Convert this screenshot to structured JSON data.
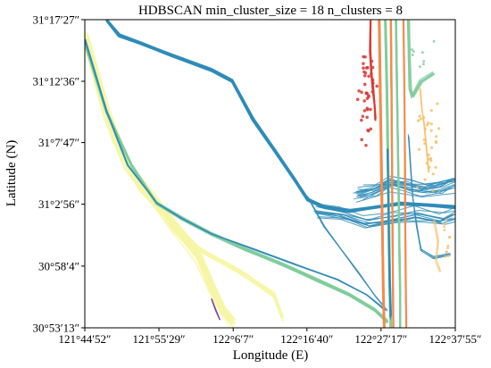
{
  "chart_data": {
    "type": "line",
    "title": "HDBSCAN min_cluster_size = 18 n_clusters = 8",
    "xlabel": "Longitude (E)",
    "ylabel": "Latitude (N)",
    "xlim": [
      121.7478,
      122.6319
    ],
    "ylim": [
      30.8869,
      31.2908
    ],
    "x_ticks": [
      {
        "value": 121.7478,
        "label": "121°44′52″"
      },
      {
        "value": 121.9247,
        "label": "121°55′29″"
      },
      {
        "value": 122.1019,
        "label": "122°6′7″"
      },
      {
        "value": 122.2778,
        "label": "122°16′40″"
      },
      {
        "value": 122.4547,
        "label": "122°27′17″"
      },
      {
        "value": 122.6319,
        "label": "122°37′55″"
      }
    ],
    "y_ticks": [
      {
        "value": 30.8869,
        "label": "30°53′13″"
      },
      {
        "value": 30.9678,
        "label": "30°58′4″"
      },
      {
        "value": 31.0489,
        "label": "31°2′56″"
      },
      {
        "value": 31.1297,
        "label": "31°7′47″"
      },
      {
        "value": 31.21,
        "label": "31°12′36″"
      },
      {
        "value": 31.2908,
        "label": "31°17′27″"
      }
    ],
    "grid": false,
    "legend": "none",
    "colors": {
      "blue": "#2f8cb8",
      "green": "#7fcc9c",
      "yellow": "#f6f6a6",
      "orange": "#f58a4b",
      "red": "#d73a32",
      "light_orange": "#f8c069",
      "purple": "#7a3f8f"
    },
    "series": [
      {
        "color_key": "yellow",
        "count": 34,
        "jitter": 0.012,
        "width": 1.1,
        "opacity": 0.75,
        "points": [
          [
            121.748,
            31.27
          ],
          [
            121.8,
            31.17
          ],
          [
            121.85,
            31.1
          ],
          [
            121.92,
            31.05
          ],
          [
            121.96,
            31.02
          ],
          [
            122.02,
            30.98
          ],
          [
            122.05,
            30.94
          ],
          [
            122.08,
            30.91
          ],
          [
            122.1,
            30.895
          ]
        ]
      },
      {
        "color_key": "yellow",
        "count": 18,
        "jitter": 0.008,
        "width": 1.0,
        "opacity": 0.7,
        "points": [
          [
            121.748,
            31.27
          ],
          [
            121.78,
            31.2
          ],
          [
            121.82,
            31.13
          ],
          [
            121.88,
            31.07
          ],
          [
            121.95,
            31.03
          ],
          [
            122.02,
            30.99
          ],
          [
            122.12,
            30.96
          ],
          [
            122.2,
            30.93
          ],
          [
            122.22,
            30.9
          ]
        ]
      },
      {
        "color_key": "green",
        "count": 14,
        "jitter": 0.003,
        "width": 1.3,
        "opacity": 0.9,
        "points": [
          [
            121.748,
            31.26
          ],
          [
            121.8,
            31.17
          ],
          [
            121.86,
            31.1
          ],
          [
            121.92,
            31.05
          ],
          [
            121.98,
            31.03
          ],
          [
            122.05,
            31.01
          ],
          [
            122.13,
            30.99
          ],
          [
            122.22,
            30.97
          ],
          [
            122.3,
            30.95
          ],
          [
            122.38,
            30.93
          ],
          [
            122.44,
            30.91
          ],
          [
            122.47,
            30.895
          ]
        ]
      },
      {
        "color_key": "blue",
        "count": 3,
        "jitter": 0.002,
        "width": 1.4,
        "opacity": 0.95,
        "points": [
          [
            121.748,
            31.265
          ],
          [
            121.8,
            31.17
          ],
          [
            121.85,
            31.1
          ],
          [
            121.92,
            31.05
          ],
          [
            121.98,
            31.03
          ],
          [
            122.05,
            31.01
          ],
          [
            122.15,
            30.99
          ],
          [
            122.25,
            30.97
          ],
          [
            122.35,
            30.95
          ],
          [
            122.42,
            30.93
          ],
          [
            122.465,
            30.91
          ]
        ]
      },
      {
        "color_key": "blue",
        "count": 22,
        "jitter": 0.0025,
        "width": 1.2,
        "opacity": 0.9,
        "points": [
          [
            121.8,
            31.29
          ],
          [
            121.83,
            31.27
          ],
          [
            121.88,
            31.26
          ],
          [
            121.95,
            31.245
          ],
          [
            122.05,
            31.225
          ],
          [
            122.1,
            31.21
          ],
          [
            122.15,
            31.16
          ],
          [
            122.2,
            31.12
          ],
          [
            122.25,
            31.08
          ],
          [
            122.28,
            31.055
          ],
          [
            122.32,
            31.045
          ],
          [
            122.38,
            31.04
          ],
          [
            122.44,
            31.045
          ],
          [
            122.5,
            31.05
          ],
          [
            122.56,
            31.048
          ],
          [
            122.632,
            31.045
          ]
        ]
      },
      {
        "color_key": "blue",
        "count": 16,
        "jitter": 0.018,
        "width": 1.0,
        "opacity": 0.85,
        "points": [
          [
            122.4,
            31.065
          ],
          [
            122.44,
            31.07
          ],
          [
            122.48,
            31.08
          ],
          [
            122.52,
            31.075
          ],
          [
            122.56,
            31.07
          ],
          [
            122.6,
            31.075
          ],
          [
            122.632,
            31.08
          ]
        ]
      },
      {
        "color_key": "blue",
        "count": 12,
        "jitter": 0.015,
        "width": 1.0,
        "opacity": 0.85,
        "points": [
          [
            122.3,
            31.04
          ],
          [
            122.36,
            31.035
          ],
          [
            122.42,
            31.025
          ],
          [
            122.48,
            31.03
          ],
          [
            122.54,
            31.035
          ],
          [
            122.6,
            31.03
          ],
          [
            122.632,
            31.035
          ]
        ]
      },
      {
        "color_key": "blue",
        "count": 2,
        "jitter": 0.004,
        "width": 1.2,
        "opacity": 0.9,
        "points": [
          [
            122.28,
            31.06
          ],
          [
            122.32,
            31.02
          ],
          [
            122.36,
            30.99
          ],
          [
            122.4,
            30.96
          ],
          [
            122.44,
            30.93
          ],
          [
            122.47,
            30.91
          ]
        ]
      },
      {
        "color_key": "green",
        "count": 16,
        "jitter": 0.002,
        "width": 1.8,
        "opacity": 0.85,
        "points": [
          [
            122.465,
            31.29
          ],
          [
            122.468,
            31.22
          ],
          [
            122.47,
            31.15
          ],
          [
            122.472,
            31.08
          ],
          [
            122.474,
            31.0
          ],
          [
            122.476,
            30.93
          ],
          [
            122.478,
            30.887
          ]
        ]
      },
      {
        "color_key": "green",
        "count": 10,
        "jitter": 0.002,
        "width": 1.6,
        "opacity": 0.85,
        "points": [
          [
            122.49,
            31.29
          ],
          [
            122.492,
            31.22
          ],
          [
            122.494,
            31.15
          ],
          [
            122.496,
            31.08
          ],
          [
            122.498,
            31.0
          ],
          [
            122.5,
            30.93
          ],
          [
            122.5,
            30.887
          ]
        ]
      },
      {
        "color_key": "green",
        "count": 6,
        "jitter": 0.004,
        "width": 1.4,
        "opacity": 0.8,
        "points": [
          [
            122.52,
            31.29
          ],
          [
            122.522,
            31.24
          ],
          [
            122.524,
            31.2
          ],
          [
            122.53,
            31.19
          ],
          [
            122.55,
            31.21
          ],
          [
            122.58,
            31.22
          ]
        ]
      },
      {
        "color_key": "orange",
        "count": 10,
        "jitter": 0.002,
        "width": 1.8,
        "opacity": 0.9,
        "points": [
          [
            122.45,
            31.29
          ],
          [
            122.452,
            31.22
          ],
          [
            122.454,
            31.15
          ],
          [
            122.456,
            31.08
          ],
          [
            122.458,
            31.0
          ],
          [
            122.46,
            30.93
          ],
          [
            122.462,
            30.887
          ]
        ]
      },
      {
        "color_key": "orange",
        "count": 8,
        "jitter": 0.002,
        "width": 1.6,
        "opacity": 0.9,
        "points": [
          [
            122.478,
            31.29
          ],
          [
            122.479,
            31.22
          ],
          [
            122.48,
            31.15
          ],
          [
            122.481,
            31.08
          ],
          [
            122.482,
            31.0
          ],
          [
            122.483,
            30.93
          ],
          [
            122.484,
            30.887
          ]
        ]
      },
      {
        "color_key": "orange",
        "count": 6,
        "jitter": 0.002,
        "width": 1.4,
        "opacity": 0.9,
        "points": [
          [
            122.508,
            31.29
          ],
          [
            122.51,
            31.22
          ],
          [
            122.511,
            31.15
          ],
          [
            122.512,
            31.08
          ],
          [
            122.513,
            31.0
          ],
          [
            122.514,
            30.93
          ],
          [
            122.515,
            30.887
          ]
        ]
      },
      {
        "color_key": "blue",
        "count": 5,
        "jitter": 0.005,
        "width": 1.0,
        "opacity": 0.9,
        "points": [
          [
            122.47,
            31.12
          ],
          [
            122.472,
            31.06
          ],
          [
            122.474,
            31.0
          ],
          [
            122.476,
            30.95
          ],
          [
            122.478,
            30.9
          ]
        ]
      },
      {
        "color_key": "blue",
        "count": 4,
        "jitter": 0.004,
        "width": 1.0,
        "opacity": 0.85,
        "points": [
          [
            122.52,
            31.14
          ],
          [
            122.525,
            31.1
          ],
          [
            122.53,
            31.06
          ],
          [
            122.54,
            31.02
          ],
          [
            122.55,
            30.99
          ],
          [
            122.58,
            30.98
          ],
          [
            122.62,
            30.985
          ]
        ]
      },
      {
        "color_key": "red",
        "count": 5,
        "jitter": 0.004,
        "width": 1.2,
        "opacity": 0.9,
        "points": [
          [
            122.43,
            31.29
          ],
          [
            122.43,
            31.25
          ],
          [
            122.432,
            31.22
          ],
          [
            122.436,
            31.2
          ],
          [
            122.44,
            31.18
          ],
          [
            122.442,
            31.16
          ]
        ]
      },
      {
        "color_key": "light_orange",
        "count": 4,
        "jitter": 0.005,
        "width": 1.0,
        "opacity": 0.8,
        "points": [
          [
            122.55,
            31.2
          ],
          [
            122.555,
            31.17
          ],
          [
            122.56,
            31.15
          ],
          [
            122.565,
            31.12
          ],
          [
            122.57,
            31.09
          ]
        ]
      },
      {
        "color_key": "light_orange",
        "count": 3,
        "jitter": 0.004,
        "width": 1.0,
        "opacity": 0.7,
        "points": [
          [
            122.58,
            31.03
          ],
          [
            122.59,
            31.0
          ],
          [
            122.585,
            30.975
          ],
          [
            122.595,
            30.96
          ]
        ]
      },
      {
        "color_key": "purple",
        "count": 2,
        "jitter": 0.002,
        "width": 1.2,
        "opacity": 0.9,
        "points": [
          [
            122.05,
            30.925
          ],
          [
            122.06,
            30.91
          ],
          [
            122.07,
            30.897
          ]
        ]
      }
    ],
    "scatter_clusters": [
      {
        "color_key": "red",
        "count": 40,
        "center": [
          122.42,
          31.19
        ],
        "spread": [
          0.035,
          0.09
        ],
        "size": 1.8
      },
      {
        "color_key": "light_orange",
        "count": 30,
        "center": [
          122.57,
          31.12
        ],
        "spread": [
          0.04,
          0.09
        ],
        "size": 1.6
      },
      {
        "color_key": "light_orange",
        "count": 12,
        "center": [
          122.61,
          31.0
        ],
        "spread": [
          0.02,
          0.05
        ],
        "size": 1.4
      },
      {
        "color_key": "green",
        "count": 10,
        "center": [
          122.55,
          31.25
        ],
        "spread": [
          0.05,
          0.03
        ],
        "size": 1.4
      }
    ]
  }
}
